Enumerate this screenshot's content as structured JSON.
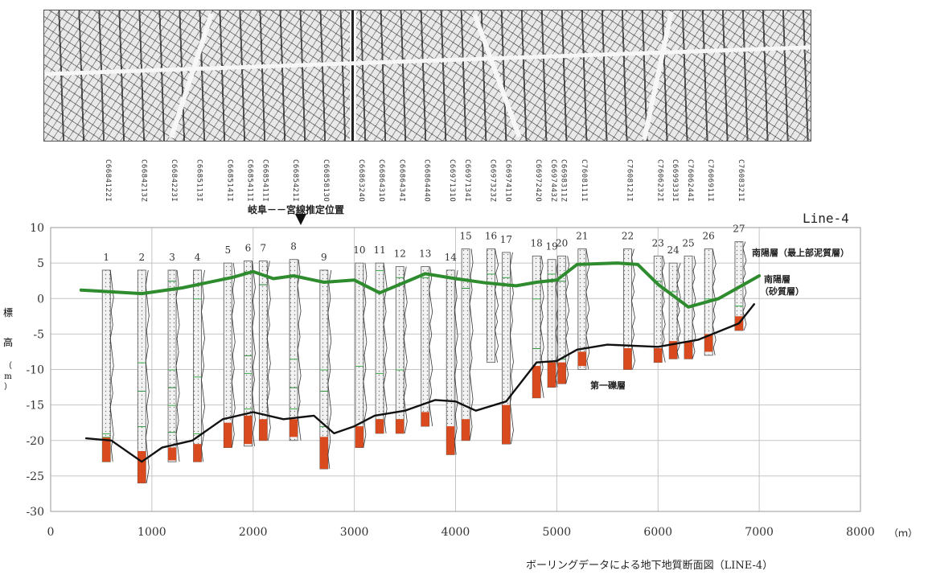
{
  "title": "ボーリングデータによる地下地質断面図（LINE-4）",
  "line_label": "Line-4",
  "fault_label": "岐阜－－宮線推定位置",
  "ylabel": "標高（m）",
  "ylabel_chars": [
    "標",
    "高",
    "（",
    "m",
    "）"
  ],
  "xunit": "（ｍ）",
  "layer_labels": {
    "upper_mud": "南陽層（最上部泥質層）",
    "sand_line1": "南陽層",
    "sand_line2": "（砂質層）",
    "gravel": "第一礫層"
  },
  "colors": {
    "mud_line": "#2e8b2e",
    "gravel_line": "#111111",
    "mud_fill": "#3cae4c",
    "gravel_fill": "#d94a1e"
  },
  "boring_ids": [
    "C6684122I",
    "C6684213Z",
    "C6684223I",
    "C6685113I",
    "C6685141I",
    "C6685411I",
    "C6685411I",
    "C6685421I",
    "C6685813O",
    "C6686324O",
    "C6686431O",
    "C6686434I",
    "C6686444O",
    "C6697131O",
    "C6697134I",
    "C6697323Z",
    "C6697411O",
    "C6697242O",
    "C6697443Z",
    "C6698311Z",
    "C7608111I",
    "C7608121I",
    "C7606232I",
    "C6699333I",
    "C7606244I",
    "C7606911I",
    "C7608321I"
  ],
  "chart_data": {
    "type": "line",
    "xlim": [
      0,
      8000
    ],
    "ylim": [
      -30,
      10
    ],
    "x_ticks": [
      0,
      1000,
      2000,
      3000,
      4000,
      5000,
      6000,
      7000,
      8000
    ],
    "y_ticks": [
      10,
      5,
      0,
      -5,
      -10,
      -15,
      -20,
      -25,
      -30
    ],
    "grid": true,
    "series": [
      {
        "name": "南陽層（最上部泥質層）",
        "points": [
          [
            300,
            1.2
          ],
          [
            900,
            0.7
          ],
          [
            1300,
            1.5
          ],
          [
            1800,
            3
          ],
          [
            2000,
            3.8
          ],
          [
            2200,
            2.8
          ],
          [
            2400,
            3.2
          ],
          [
            2700,
            2.3
          ],
          [
            3000,
            2.6
          ],
          [
            3250,
            0.8
          ],
          [
            3500,
            2.3
          ],
          [
            3700,
            3.5
          ],
          [
            4000,
            2.8
          ],
          [
            4300,
            2.2
          ],
          [
            4600,
            1.8
          ],
          [
            4800,
            2.3
          ],
          [
            5000,
            2.6
          ],
          [
            5200,
            4.8
          ],
          [
            5600,
            5
          ],
          [
            5800,
            4.8
          ],
          [
            6000,
            2
          ],
          [
            6300,
            -1.2
          ],
          [
            6600,
            0
          ],
          [
            7000,
            3.2
          ]
        ]
      },
      {
        "name": "第一礫層",
        "points": [
          [
            350,
            -19.7
          ],
          [
            600,
            -20
          ],
          [
            900,
            -23
          ],
          [
            1100,
            -21
          ],
          [
            1400,
            -20
          ],
          [
            1700,
            -17
          ],
          [
            2000,
            -16
          ],
          [
            2300,
            -17
          ],
          [
            2600,
            -16.5
          ],
          [
            2800,
            -19
          ],
          [
            3000,
            -18
          ],
          [
            3200,
            -16.5
          ],
          [
            3500,
            -15.8
          ],
          [
            3800,
            -14.3
          ],
          [
            4000,
            -14.5
          ],
          [
            4200,
            -15.8
          ],
          [
            4500,
            -14.5
          ],
          [
            4800,
            -9
          ],
          [
            5000,
            -8.8
          ],
          [
            5200,
            -7.2
          ],
          [
            5500,
            -6.5
          ],
          [
            6000,
            -6.8
          ],
          [
            6400,
            -5.8
          ],
          [
            6800,
            -3.5
          ],
          [
            6950,
            -0.8
          ]
        ]
      }
    ],
    "borings": [
      {
        "no": "1",
        "x": 550,
        "top": 4,
        "bottom": -23,
        "mud": [
          [
            -7.5,
            -19
          ],
          [
            -23,
            -19.5
          ]
        ],
        "gravel": [
          -23,
          -19.6
        ]
      },
      {
        "no": "2",
        "x": 900,
        "top": 4,
        "bottom": -26,
        "mud": [
          [
            -7.5,
            -9
          ],
          [
            -11,
            -13
          ],
          [
            -14,
            -18
          ]
        ],
        "gravel": [
          -26,
          -21.5
        ]
      },
      {
        "no": "3",
        "x": 1200,
        "top": 4,
        "bottom": -23,
        "mud": [
          [
            3.5,
            2.5
          ],
          [
            -8,
            -10
          ],
          [
            -11,
            -12.5
          ],
          [
            -13.5,
            -15
          ],
          [
            -18,
            -18.8
          ]
        ],
        "gravel": [
          -22.8,
          -21
        ]
      },
      {
        "no": "4",
        "x": 1450,
        "top": 4,
        "bottom": -23,
        "mud": [
          [
            3.5,
            0
          ],
          [
            -10.5,
            -11
          ],
          [
            -18,
            -19
          ]
        ],
        "gravel": [
          -23,
          -20.5
        ]
      },
      {
        "no": "5",
        "x": 1750,
        "top": 5,
        "bottom": -21,
        "mud": [
          [
            5,
            3
          ]
        ],
        "gravel": [
          -21,
          -17.5
        ]
      },
      {
        "no": "6",
        "x": 1950,
        "top": 5.3,
        "bottom": -20.8,
        "mud": [
          [
            4.5,
            3.8
          ],
          [
            -6.5,
            -8
          ],
          [
            -8.8,
            -10.5
          ],
          [
            -12,
            -15.5
          ]
        ],
        "gravel": [
          -20.5,
          -16.5
        ]
      },
      {
        "no": "7",
        "x": 2100,
        "top": 5.3,
        "bottom": -20,
        "mud": [
          [
            4.5,
            2
          ]
        ],
        "gravel": [
          -20,
          -17
        ]
      },
      {
        "no": "8",
        "x": 2400,
        "top": 5.5,
        "bottom": -20,
        "mud": [
          [
            -7,
            -8.5
          ],
          [
            -10.5,
            -12.5
          ],
          [
            -14,
            -15.5
          ]
        ],
        "gravel": [
          -19.5,
          -17
        ]
      },
      {
        "no": "9",
        "x": 2700,
        "top": 4,
        "bottom": -24,
        "mud": [
          [
            3.5,
            2.5
          ],
          [
            -8.5,
            -10
          ],
          [
            -12,
            -13
          ],
          [
            -16.5,
            -18
          ]
        ],
        "gravel": [
          -24,
          -19.5
        ]
      },
      {
        "no": "10",
        "x": 3050,
        "top": 5,
        "bottom": -21,
        "mud": [
          [
            -8.5,
            -9.5
          ]
        ],
        "gravel": [
          -21,
          -18
        ]
      },
      {
        "no": "11",
        "x": 3250,
        "top": 5,
        "bottom": -19,
        "mud": [
          [
            5,
            4
          ],
          [
            -10,
            -10.5
          ],
          [
            -16,
            -17
          ]
        ],
        "gravel": [
          -19,
          -17
        ]
      },
      {
        "no": "12",
        "x": 3450,
        "top": 4.5,
        "bottom": -19,
        "mud": [
          [
            4,
            3
          ],
          [
            -9,
            -10
          ],
          [
            -14,
            -17
          ]
        ],
        "gravel": [
          -19,
          -17
        ]
      },
      {
        "no": "13",
        "x": 3700,
        "top": 4.5,
        "bottom": -18,
        "mud": [
          [
            4,
            3
          ]
        ],
        "gravel": [
          -18,
          -16
        ]
      },
      {
        "no": "14",
        "x": 3950,
        "top": 4,
        "bottom": -22,
        "mud": [],
        "gravel": [
          -22,
          -18
        ]
      },
      {
        "no": "15",
        "x": 4100,
        "top": 7,
        "bottom": -20,
        "mud": [
          [
            5,
            1.5
          ]
        ],
        "gravel": [
          -20,
          -17
        ]
      },
      {
        "no": "16",
        "x": 4350,
        "top": 7,
        "bottom": -9,
        "mud": [
          [
            5,
            3.5
          ]
        ],
        "gravel": null
      },
      {
        "no": "17",
        "x": 4500,
        "top": 6.5,
        "bottom": -20.5,
        "mud": [
          [
            6,
            3
          ]
        ],
        "gravel": [
          -20.5,
          -15
        ]
      },
      {
        "no": "18",
        "x": 4800,
        "top": 6,
        "bottom": -14,
        "mud": [
          [
            6,
            0
          ],
          [
            -4.5,
            -7
          ]
        ],
        "gravel": [
          -14,
          -9.5
        ]
      },
      {
        "no": "19",
        "x": 4950,
        "top": 5.5,
        "bottom": -12.5,
        "mud": [
          [
            5,
            3.5
          ],
          [
            -7.5,
            -9
          ]
        ],
        "gravel": [
          -12.5,
          -9
        ]
      },
      {
        "no": "20",
        "x": 5050,
        "top": 6,
        "bottom": -12,
        "mud": [
          [
            5.5,
            2.5
          ],
          [
            -7.5,
            -8.5
          ]
        ],
        "gravel": [
          -12,
          -9
        ]
      },
      {
        "no": "21",
        "x": 5250,
        "top": 7,
        "bottom": -10,
        "mud": [
          [
            7,
            5
          ],
          [
            -7,
            -8
          ]
        ],
        "gravel": [
          -9.5,
          -7.5
        ]
      },
      {
        "no": "22",
        "x": 5700,
        "top": 7,
        "bottom": -10,
        "mud": [
          [
            -4,
            -6.5
          ]
        ],
        "gravel": [
          -10,
          -7
        ]
      },
      {
        "no": "23",
        "x": 6000,
        "top": 6,
        "bottom": -9,
        "mud": [
          [
            5,
            2.5
          ]
        ],
        "gravel": [
          -9,
          -7
        ]
      },
      {
        "no": "24",
        "x": 6150,
        "top": 5,
        "bottom": -8.5,
        "mud": [
          [
            3.5,
            1
          ]
        ],
        "gravel": [
          -8.5,
          -6
        ]
      },
      {
        "no": "25",
        "x": 6300,
        "top": 6,
        "bottom": -8.5,
        "mud": [
          [
            5,
            -1
          ],
          [
            -5,
            -6.5
          ]
        ],
        "gravel": [
          -8.5,
          -6
        ]
      },
      {
        "no": "26",
        "x": 6500,
        "top": 7,
        "bottom": -8,
        "mud": [
          [
            6,
            0
          ],
          [
            -4,
            -5
          ]
        ],
        "gravel": [
          -7.5,
          -5
        ]
      },
      {
        "no": "27",
        "x": 6800,
        "top": 8,
        "bottom": -4.5,
        "mud": [
          [
            5.5,
            -1
          ]
        ],
        "gravel": [
          -4.5,
          -2.5
        ]
      }
    ]
  }
}
